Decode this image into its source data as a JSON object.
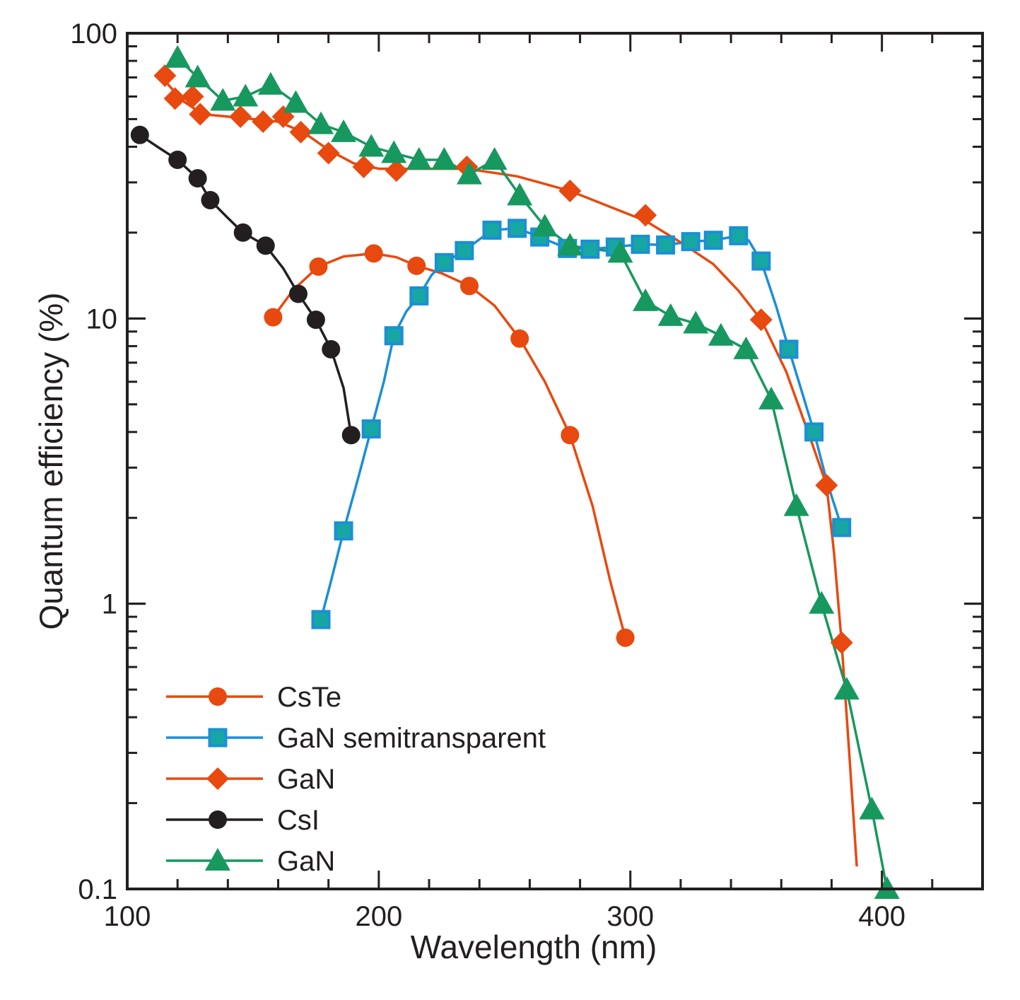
{
  "chart_data": {
    "type": "line",
    "title": "",
    "xlabel": "Wavelength (nm)",
    "ylabel": "Quantum efficiency (%)",
    "xlim": [
      100,
      440
    ],
    "ylim": [
      0.1,
      100
    ],
    "yscale": "log",
    "x_ticks": [
      100,
      200,
      300,
      400
    ],
    "x_tick_labels": [
      "100",
      "200",
      "300",
      "400"
    ],
    "y_ticks": [
      0.1,
      1,
      10,
      100
    ],
    "y_tick_labels": [
      "0.1",
      "1",
      "10",
      "100"
    ],
    "grid": false,
    "legend_position": "bottom-left",
    "series": [
      {
        "name": "CsTe",
        "color": "#e8490f",
        "marker": "circle",
        "x": [
          158,
          176,
          198,
          215,
          236,
          256,
          276,
          298
        ],
        "y": [
          10.1,
          15.2,
          16.9,
          15.3,
          13.0,
          8.5,
          3.9,
          0.76
        ],
        "curve_x": [
          158,
          166,
          176,
          186,
          198,
          207,
          215,
          225,
          236,
          246,
          256,
          266,
          276,
          285,
          292,
          298
        ],
        "curve_y": [
          10.1,
          12.6,
          15.2,
          16.5,
          16.9,
          16.4,
          15.3,
          14.4,
          13.0,
          11.1,
          8.5,
          6.0,
          3.9,
          2.2,
          1.2,
          0.76
        ]
      },
      {
        "name": "GaN semitransparent",
        "color": "#1b8fd6",
        "marker": "square",
        "x": [
          177,
          186,
          197,
          206,
          216,
          226,
          234,
          245,
          255,
          264,
          275,
          284,
          294,
          304,
          314,
          324,
          333,
          343,
          352,
          363,
          373,
          384
        ],
        "y": [
          0.88,
          1.8,
          4.1,
          8.7,
          12.0,
          15.7,
          17.3,
          20.4,
          20.7,
          19.3,
          17.6,
          17.5,
          17.8,
          18.2,
          18.1,
          18.6,
          18.8,
          19.5,
          15.9,
          7.8,
          4.0,
          1.85
        ],
        "curve_x": [
          177,
          181,
          186,
          192,
          197,
          202,
          206,
          211,
          216,
          221,
          226,
          234,
          245,
          255,
          264,
          275,
          284,
          294,
          304,
          314,
          324,
          333,
          343,
          347,
          352,
          358,
          363,
          368,
          373,
          378,
          384
        ],
        "curve_y": [
          0.88,
          1.2,
          1.8,
          2.8,
          4.1,
          6.0,
          8.7,
          10.6,
          12.0,
          14.2,
          15.7,
          17.3,
          20.4,
          20.7,
          19.3,
          17.6,
          17.5,
          17.8,
          18.2,
          18.1,
          18.6,
          18.8,
          19.5,
          18.8,
          15.9,
          11.0,
          7.8,
          5.6,
          4.0,
          2.7,
          1.85
        ]
      },
      {
        "name": "GaN",
        "color": "#e8490f",
        "marker": "diamond",
        "x": [
          115,
          119,
          126,
          129,
          145,
          154,
          162,
          169,
          180,
          194,
          207,
          235,
          276,
          306,
          352,
          378,
          384
        ],
        "y": [
          71,
          59,
          60,
          52,
          51,
          49,
          51,
          45,
          38,
          34,
          33,
          34,
          28,
          23,
          9.9,
          2.6,
          0.73
        ],
        "curve_x": [
          115,
          122,
          130,
          140,
          150,
          160,
          170,
          180,
          190,
          200,
          215,
          235,
          255,
          276,
          290,
          306,
          320,
          333,
          343,
          352,
          362,
          372,
          378,
          381,
          384,
          387,
          390
        ],
        "curve_y": [
          68,
          58,
          52,
          51,
          50,
          49,
          45,
          39,
          35,
          33.5,
          33.5,
          33.5,
          31.5,
          28,
          25,
          22,
          18.5,
          15.5,
          12.5,
          9.9,
          6.5,
          3.7,
          2.6,
          1.5,
          0.73,
          0.3,
          0.12
        ]
      },
      {
        "name": "CsI",
        "color": "#231f20",
        "marker": "circle",
        "x": [
          105,
          120,
          128,
          133,
          146,
          155,
          168,
          175,
          181,
          189
        ],
        "y": [
          44,
          36,
          31,
          26,
          20,
          18,
          12.2,
          9.9,
          7.8,
          3.9
        ],
        "curve_x": [
          105,
          112,
          120,
          128,
          133,
          140,
          146,
          155,
          162,
          168,
          175,
          181,
          186,
          189
        ],
        "curve_y": [
          44,
          40,
          36,
          31,
          26,
          22.5,
          20,
          18,
          15,
          12.2,
          9.9,
          7.8,
          5.7,
          3.9
        ]
      },
      {
        "name": "GaN",
        "color": "#17985e",
        "marker": "triangle",
        "x": [
          120,
          128,
          138,
          147,
          157,
          167,
          177,
          186,
          197,
          206,
          216,
          226,
          236,
          246,
          256,
          266,
          276,
          296,
          306,
          316,
          326,
          336,
          346,
          356,
          366,
          376,
          386,
          396,
          402
        ],
        "y": [
          82,
          70,
          58,
          60,
          66,
          57,
          48,
          45,
          40,
          38,
          36,
          36,
          32,
          36,
          27,
          21,
          18,
          17,
          11.5,
          10.2,
          9.6,
          8.7,
          7.8,
          5.2,
          2.2,
          1.0,
          0.5,
          0.19,
          0.1
        ],
        "curve_x": [
          120,
          128,
          138,
          147,
          157,
          167,
          177,
          186,
          197,
          206,
          216,
          226,
          236,
          246,
          256,
          266,
          276,
          286,
          296,
          306,
          316,
          326,
          336,
          346,
          356,
          366,
          376,
          386,
          396,
          402
        ],
        "curve_y": [
          82,
          70,
          58,
          60,
          66,
          57,
          48,
          45,
          40,
          38,
          36,
          36,
          32,
          36,
          27,
          21,
          18,
          17.5,
          17,
          11.5,
          10.2,
          9.6,
          8.7,
          7.8,
          5.2,
          2.2,
          1.0,
          0.5,
          0.19,
          0.1
        ]
      }
    ]
  }
}
